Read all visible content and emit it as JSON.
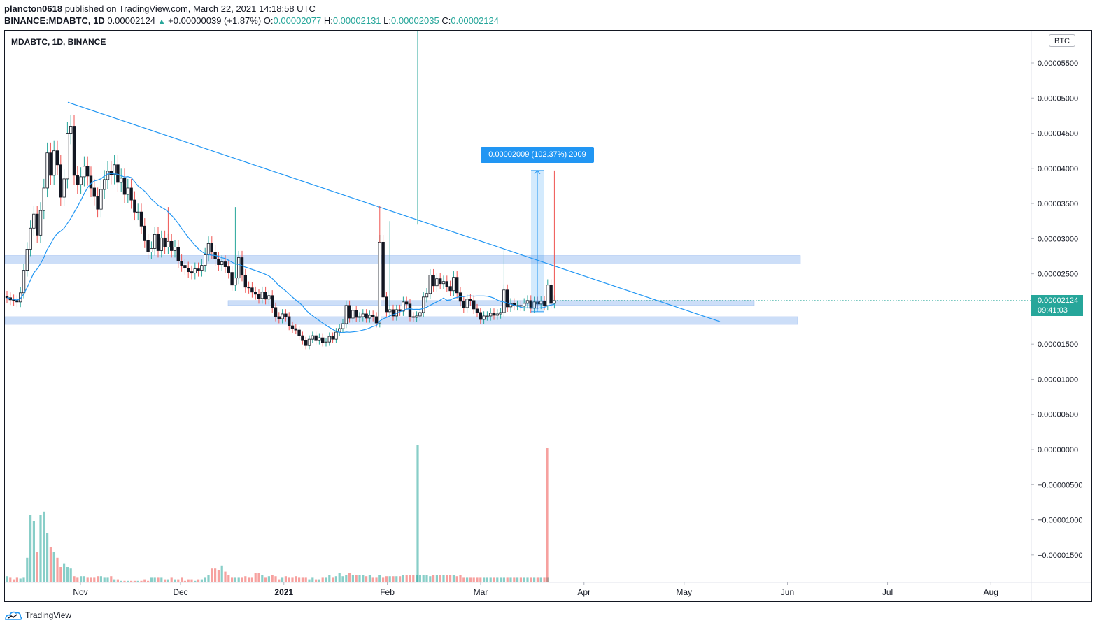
{
  "header": {
    "author": "plancton0618",
    "published": " published on TradingView.com, March 22, 2021 14:18:58 UTC",
    "symbol": "BINANCE:MDABTC, 1D",
    "last": "0.00002124",
    "change": "+0.00000039 (+1.87%)",
    "o_label": "O:",
    "o_value": "0.00002077",
    "h_label": "H:",
    "h_value": "0.00002131",
    "l_label": "L:",
    "l_value": "0.00002035",
    "c_label": "C:",
    "c_value": "0.00002124"
  },
  "chart": {
    "title": "MDABTC, 1D, BINANCE",
    "currency_badge": "BTC",
    "price_tag": {
      "price": "0.00002124",
      "countdown": "09:41:03"
    },
    "measure_label": "0.00002009 (102.37%) 2009"
  },
  "footer": {
    "brand": "TradingView"
  },
  "colors": {
    "up": "#26a69a",
    "down": "#ef5350",
    "ma": "#2196f3",
    "zone": "#bbd3f5",
    "line": "#2196f3"
  },
  "chart_data": {
    "type": "candlestick",
    "title": "MDABTC, 1D, BINANCE",
    "y_ticks": [
      "0.00005500",
      "0.00005000",
      "0.00004500",
      "0.00004000",
      "0.00003500",
      "0.00003000",
      "0.00002500",
      "0.00002000",
      "0.00001500",
      "0.00001000",
      "0.00000500",
      "0.00000000",
      "−0.00000500",
      "−0.00001000",
      "−0.00001500"
    ],
    "y_tick_values": [
      5.5e-05,
      5e-05,
      4.5e-05,
      4e-05,
      3.5e-05,
      3e-05,
      2.5e-05,
      2e-05,
      1.5e-05,
      1e-05,
      5e-06,
      0,
      -5e-06,
      -1e-05,
      -1.5e-05
    ],
    "x_ticks": [
      {
        "label": "Nov",
        "date": "2020-11-01",
        "bold": false
      },
      {
        "label": "Dec",
        "date": "2020-12-01",
        "bold": false
      },
      {
        "label": "2021",
        "date": "2021-01-01",
        "bold": true
      },
      {
        "label": "Feb",
        "date": "2021-02-01",
        "bold": false
      },
      {
        "label": "Mar",
        "date": "2021-03-01",
        "bold": false
      },
      {
        "label": "Apr",
        "date": "2021-04-01",
        "bold": false
      },
      {
        "label": "May",
        "date": "2021-05-01",
        "bold": false
      },
      {
        "label": "Jun",
        "date": "2021-06-01",
        "bold": false
      },
      {
        "label": "Jul",
        "date": "2021-07-01",
        "bold": false
      },
      {
        "label": "Aug",
        "date": "2021-08-01",
        "bold": false
      }
    ],
    "ylim": [
      -1.75e-05,
      5.85e-05
    ],
    "xlim": [
      "2020-10-05",
      "2021-08-12"
    ],
    "price_closes": [
      2.16e-05,
      2.13e-05,
      2.12e-05,
      2.1e-05,
      2.23e-05,
      2.55e-05,
      2.85e-05,
      3.15e-05,
      3.35e-05,
      3.05e-05,
      3.4e-05,
      3.72e-05,
      4.22e-05,
      3.9e-05,
      4.25e-05,
      4.05e-05,
      3.59e-05,
      3.85e-05,
      4.5e-05,
      4.6e-05,
      3.9e-05,
      3.77e-05,
      3.88e-05,
      4.03e-05,
      3.89e-05,
      3.72e-05,
      3.6e-05,
      3.42e-05,
      3.7e-05,
      3.84e-05,
      3.96e-05,
      3.91e-05,
      4.05e-05,
      3.8e-05,
      3.86e-05,
      3.63e-05,
      3.72e-05,
      3.55e-05,
      3.38e-05,
      3.38e-05,
      3.18e-05,
      2.97e-05,
      2.81e-05,
      2.86e-05,
      3.06e-05,
      2.83e-05,
      3.01e-05,
      2.88e-05,
      2.96e-05,
      2.83e-05,
      2.88e-05,
      2.68e-05,
      2.62e-05,
      2.58e-05,
      2.53e-05,
      2.51e-05,
      2.57e-05,
      2.55e-05,
      2.62e-05,
      2.77e-05,
      2.93e-05,
      2.81e-05,
      2.71e-05,
      2.63e-05,
      2.67e-05,
      2.6e-05,
      2.52e-05,
      2.34e-05,
      2.44e-05,
      2.73e-05,
      2.48e-05,
      2.31e-05,
      2.3e-05,
      2.24e-05,
      2.21e-05,
      2.15e-05,
      2.24e-05,
      2.14e-05,
      2.19e-05,
      2.02e-05,
      1.89e-05,
      1.86e-05,
      1.93e-05,
      1.89e-05,
      1.76e-05,
      1.72e-05,
      1.7e-05,
      1.62e-05,
      1.55e-05,
      1.48e-05,
      1.57e-05,
      1.62e-05,
      1.55e-05,
      1.59e-05,
      1.52e-05,
      1.53e-05,
      1.61e-05,
      1.57e-05,
      1.67e-05,
      1.72e-05,
      1.79e-05,
      2.05e-05,
      1.87e-05,
      1.98e-05,
      1.88e-05,
      1.89e-05,
      1.93e-05,
      1.87e-05,
      1.91e-05,
      1.89e-05,
      1.8e-05,
      2.95e-05,
      2.17e-05,
      1.96e-05,
      1.99e-05,
      1.9e-05,
      1.99e-05,
      1.97e-05,
      2.1e-05,
      2.07e-05,
      1.89e-05,
      1.88e-05,
      1.9e-05,
      1.95e-05,
      2.17e-05,
      2.22e-05,
      2.48e-05,
      2.33e-05,
      2.43e-05,
      2.36e-05,
      2.39e-05,
      2.32e-05,
      2.26e-05,
      2.45e-05,
      2.23e-05,
      2.11e-05,
      2.02e-05,
      2.14e-05,
      2.12e-05,
      2e-05,
      1.95e-05,
      1.85e-05,
      1.9e-05,
      1.9e-05,
      1.94e-05,
      1.91e-05,
      1.93e-05,
      1.95e-05,
      2.27e-05,
      2.03e-05,
      2.08e-05,
      2.05e-05,
      2.05e-05,
      2.04e-05,
      2.08e-05,
      2.12e-05,
      2.01e-05,
      2.1e-05,
      2.07e-05,
      2.11e-05,
      2.05e-05,
      2.34e-05,
      2.08e-05,
      2.12e-05
    ],
    "volume_note": "relative volumes (no scale printed)",
    "volumes": [
      0.4,
      0.3,
      0.2,
      0.3,
      0.25,
      0.3,
      1.6,
      4.4,
      4.0,
      2.0,
      4.4,
      4.6,
      3.2,
      2.3,
      2.0,
      1.6,
      1.0,
      1.2,
      1.0,
      0.9,
      0.4,
      0.3,
      0.4,
      0.4,
      0.3,
      0.3,
      0.3,
      0.4,
      0.4,
      0.3,
      0.3,
      0.4,
      0.2,
      0.2,
      0.1,
      0.1,
      0.1,
      0.1,
      0.1,
      0.1,
      0.1,
      0.2,
      0.1,
      0.3,
      0.3,
      0.3,
      0.3,
      0.2,
      0.2,
      0.3,
      0.2,
      0.2,
      0.3,
      0.1,
      0.2,
      0.2,
      0.1,
      0.2,
      0.2,
      0.3,
      0.5,
      0.9,
      0.9,
      0.8,
      1.1,
      0.7,
      0.5,
      0.3,
      0.3,
      0.3,
      0.3,
      0.4,
      0.3,
      0.3,
      0.6,
      0.6,
      0.5,
      0.3,
      0.4,
      0.5,
      0.4,
      0.2,
      0.3,
      0.4,
      0.3,
      0.3,
      0.4,
      0.3,
      0.3,
      0.3,
      0.2,
      0.3,
      0.2,
      0.2,
      0.3,
      0.3,
      0.5,
      0.3,
      0.4,
      0.6,
      0.4,
      0.5,
      0.6,
      0.5,
      0.5,
      0.5,
      0.5,
      0.4,
      0.5,
      0.3,
      0.3,
      0.5,
      0.3,
      0.4,
      0.4,
      0.4,
      0.4,
      0.4,
      0.5,
      0.5,
      0.5,
      0.5,
      0.5,
      0.5,
      0.5,
      0.5,
      0.4,
      0.5,
      0.5,
      0.5,
      0.5,
      0.5,
      0.5,
      0.5,
      0.4,
      0.5,
      0.3,
      0.3,
      0.3,
      0.3,
      0.3,
      0.3,
      0.3,
      0.3,
      0.3,
      0.3,
      0.3,
      0.3,
      0.3,
      0.3,
      0.3,
      0.3,
      0.3,
      0.3,
      0.3,
      0.3,
      0.3,
      0.3,
      0.3,
      0.3,
      0.3,
      0.3
    ]
  }
}
